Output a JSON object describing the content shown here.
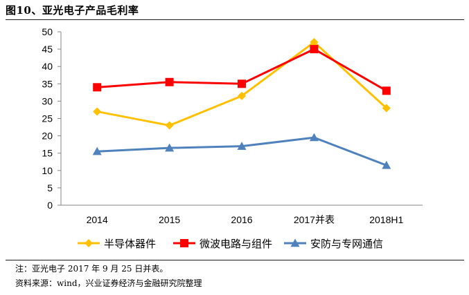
{
  "title": "图10、亚光电子产品毛利率",
  "note": "注：亚光电子 2017 年 9 月 25 日并表。",
  "source": "资料来源：wind，兴业证券经济与金融研究院整理",
  "chart_data": {
    "type": "line",
    "title": "",
    "xlabel": "",
    "ylabel": "",
    "categories": [
      "2014",
      "2015",
      "2016",
      "2017并表",
      "2018H1"
    ],
    "ylim": [
      0,
      50
    ],
    "yticks": [
      0,
      5,
      10,
      15,
      20,
      25,
      30,
      35,
      40,
      45,
      50
    ],
    "grid": false,
    "legend": "bottom",
    "series": [
      {
        "name": "半导体器件",
        "values": [
          27,
          23,
          31.5,
          47,
          28
        ],
        "color": "#FFC000",
        "marker": "diamond"
      },
      {
        "name": "微波电路与组件",
        "values": [
          34,
          35.5,
          35,
          45,
          33
        ],
        "color": "#FF0000",
        "marker": "square"
      },
      {
        "name": "安防与专网通信",
        "values": [
          15.5,
          16.5,
          17,
          19.5,
          11.5
        ],
        "color": "#4F81BD",
        "marker": "triangle"
      }
    ]
  }
}
